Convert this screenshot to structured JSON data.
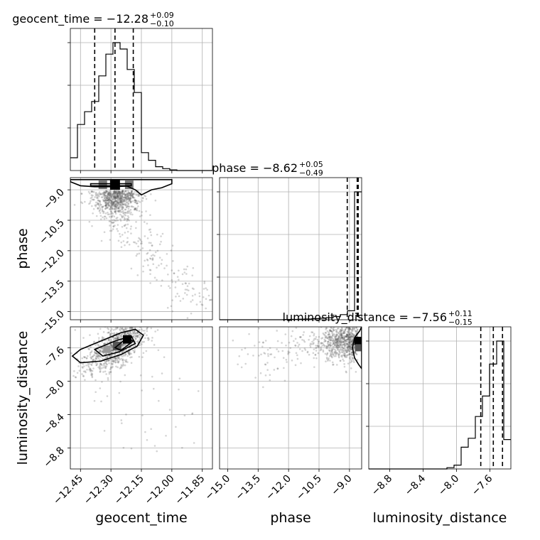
{
  "chart_data": {
    "type": "corner",
    "parameters": [
      "geocent_time",
      "phase",
      "luminosity_distance"
    ],
    "axis_labels": [
      "geocent_time",
      "phase",
      "luminosity_distance"
    ],
    "titles": [
      {
        "param": "geocent_time",
        "text": "geocent_time = −12.28",
        "sup": "+0.09",
        "sub": "−0.10"
      },
      {
        "param": "phase",
        "text": "phase = −8.62",
        "sup": "+0.05",
        "sub": "−0.49"
      },
      {
        "param": "luminosity_distance",
        "text": "luminosity_distance = −7.56",
        "sup": "+0.11",
        "sub": "−0.15"
      }
    ],
    "ranges": {
      "geocent_time": [
        -12.5,
        -11.8
      ],
      "phase": [
        -15.4,
        -8.4
      ],
      "luminosity_distance": [
        -9.05,
        -7.35
      ]
    },
    "ticks": {
      "geocent_time": [
        -12.45,
        -12.3,
        -12.15,
        -12.0,
        -11.85
      ],
      "phase": [
        -15.0,
        -13.5,
        -12.0,
        -10.5,
        -9.0
      ],
      "luminosity_distance": [
        -8.8,
        -8.4,
        -8.0,
        -7.6
      ]
    },
    "tick_labels": {
      "geocent_time": [
        "−12.45",
        "−12.30",
        "−12.15",
        "−12.00",
        "−11.85"
      ],
      "phase": [
        "−15.0",
        "−13.5",
        "−12.0",
        "−10.5",
        "−9.0"
      ],
      "luminosity_distance": [
        "−8.8",
        "−8.4",
        "−8.0",
        "−7.6"
      ]
    },
    "quantiles": {
      "geocent_time": [
        -12.38,
        -12.28,
        -12.19
      ],
      "phase": [
        -9.11,
        -8.62,
        -8.57
      ],
      "luminosity_distance": [
        -7.71,
        -7.56,
        -7.45
      ]
    },
    "histograms": {
      "geocent_time": {
        "edges": [
          -12.5,
          -12.465,
          -12.43,
          -12.395,
          -12.36,
          -12.325,
          -12.29,
          -12.255,
          -12.22,
          -12.185,
          -12.15,
          -12.115,
          -12.08,
          -12.045,
          -12.01,
          -11.975,
          -11.94,
          -11.905,
          -11.87,
          -11.835,
          -11.8
        ],
        "counts": [
          10,
          36,
          46,
          54,
          74,
          91,
          100,
          95,
          79,
          61,
          14,
          8,
          3,
          1.5,
          0.5,
          0,
          0,
          0,
          0,
          0
        ]
      },
      "phase": {
        "edges": [
          -15.4,
          -15.05,
          -14.7,
          -14.35,
          -14.0,
          -13.65,
          -13.3,
          -12.95,
          -12.6,
          -12.25,
          -11.9,
          -11.55,
          -11.2,
          -10.85,
          -10.5,
          -10.15,
          -9.8,
          -9.45,
          -9.1,
          -8.75,
          -8.4
        ],
        "counts": [
          0,
          0,
          0,
          0,
          0,
          0,
          0,
          0,
          0,
          0.2,
          0.3,
          0.4,
          0.6,
          0.9,
          1.2,
          1.6,
          2.5,
          4,
          7,
          100
        ]
      },
      "luminosity_distance": {
        "edges": [
          -9.05,
          -8.965,
          -8.88,
          -8.795,
          -8.71,
          -8.625,
          -8.54,
          -8.455,
          -8.37,
          -8.285,
          -8.2,
          -8.115,
          -8.03,
          -7.945,
          -7.86,
          -7.775,
          -7.69,
          -7.605,
          -7.52,
          -7.435,
          -7.35
        ],
        "counts": [
          0,
          0,
          0,
          0,
          0,
          0,
          0,
          0,
          0,
          0,
          0,
          1,
          3,
          17,
          24,
          41,
          57,
          82,
          100,
          23
        ]
      }
    },
    "grid": true
  }
}
